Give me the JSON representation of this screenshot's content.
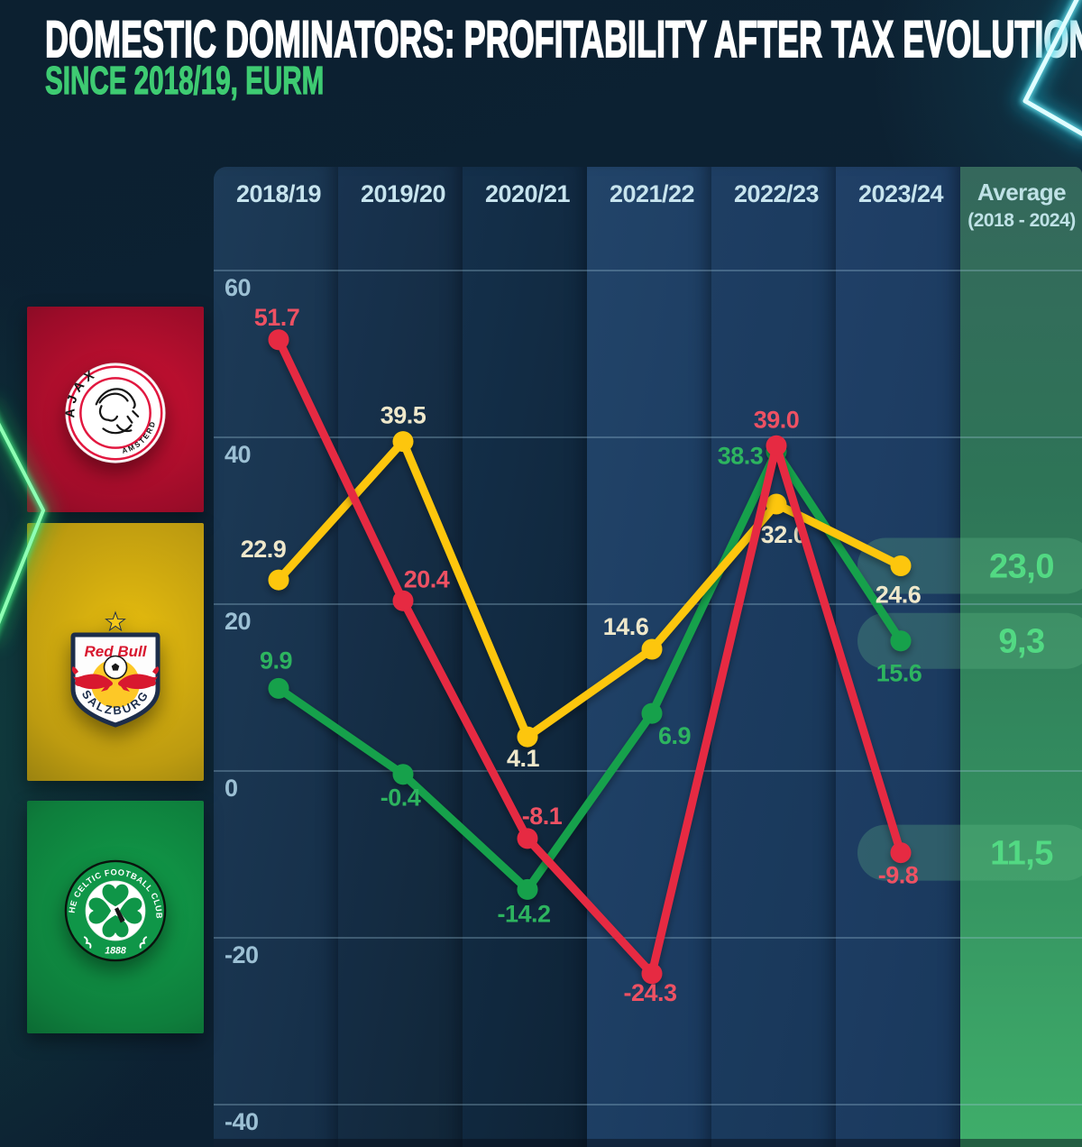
{
  "header": {
    "title": "DOMESTIC DOMINATORS: PROFITABILITY AFTER TAX EVOLUTION",
    "subtitle": "SINCE 2018/19, EURM",
    "title_color": "#ffffff",
    "subtitle_color": "#3ecb72"
  },
  "sidebar": {
    "clubs": [
      {
        "name": "AFC Ajax",
        "band_color": "#9c0c29",
        "crest": {
          "ring_text_top": "AJAX",
          "ring_text_bottom": "AMSTERDAM"
        }
      },
      {
        "name": "FC Red Bull Salzburg",
        "band_color": "#bd9b10",
        "crest": {
          "brand": "Red Bull",
          "city": "SALZBURG"
        }
      },
      {
        "name": "Celtic FC",
        "band_color": "#0e7e3c",
        "crest": {
          "ring_text": "THE CELTIC FOOTBALL CLUB",
          "year": "1888"
        }
      }
    ]
  },
  "chart_data": {
    "type": "line",
    "categories": [
      "2018/19",
      "2019/20",
      "2020/21",
      "2021/22",
      "2022/23",
      "2023/24"
    ],
    "average_header": {
      "label": "Average",
      "sublabel": "(2018 - 2024)"
    },
    "y_ticks": [
      60,
      40,
      20,
      0,
      -20,
      -40
    ],
    "ylim": [
      -47,
      65
    ],
    "grid": true,
    "legend_position": "left-sidebar-logos",
    "avg_value_color": "#52d983",
    "series": [
      {
        "name": "Ajax",
        "color": "#e62a42",
        "label_color": "#ee5163",
        "values": [
          51.7,
          20.4,
          -8.1,
          -24.3,
          39.0,
          -9.8
        ],
        "average": 11.5,
        "average_display": "11,5",
        "label_offsets": [
          [
            -2,
            -16
          ],
          [
            26,
            -15
          ],
          [
            16,
            -16
          ],
          [
            -2,
            30
          ],
          [
            0,
            -20
          ],
          [
            -3,
            34
          ]
        ]
      },
      {
        "name": "Red Bull Salzburg",
        "color": "#fdc608",
        "label_color": "#efe8cb",
        "values": [
          22.9,
          39.5,
          4.1,
          14.6,
          32.0,
          24.6
        ],
        "average": 23.0,
        "average_display": "23,0",
        "label_offsets": [
          [
            -17,
            -25
          ],
          [
            0,
            -20
          ],
          [
            -5,
            33
          ],
          [
            -29,
            -16
          ],
          [
            8,
            43
          ],
          [
            -3,
            41
          ]
        ]
      },
      {
        "name": "Celtic",
        "color": "#18a14b",
        "label_color": "#2db45f",
        "values": [
          9.9,
          -0.4,
          -14.2,
          6.9,
          38.3,
          15.6
        ],
        "average": 9.3,
        "average_display": "9,3",
        "label_offsets": [
          [
            -3,
            -22
          ],
          [
            -3,
            35
          ],
          [
            -4,
            36
          ],
          [
            25,
            34
          ],
          [
            -40,
            14
          ],
          [
            -2,
            45
          ]
        ]
      }
    ]
  },
  "decorations": {
    "neon_star_color": "#3fe07e",
    "neon_chevron_color": "#66e2ef"
  }
}
